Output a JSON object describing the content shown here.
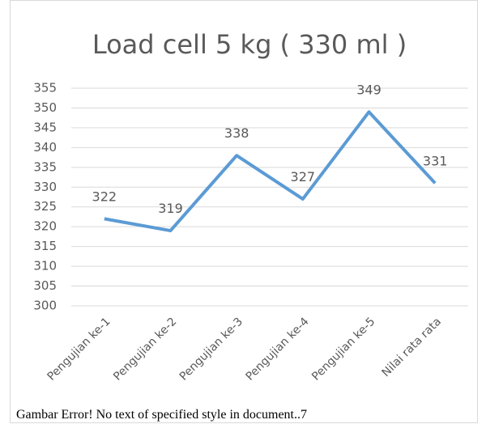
{
  "chart_data": {
    "type": "line",
    "title": "Load cell 5 kg ( 330 ml )",
    "categories": [
      "Pengujian ke-1",
      "Pengujian ke-2",
      "Pengujian ke-3",
      "Pengujian ke-4",
      "Pengujian ke-5",
      "Nilai rata rata"
    ],
    "values": [
      322,
      319,
      338,
      327,
      349,
      331
    ],
    "color": "#5b9bd5",
    "ylim": [
      300,
      355
    ],
    "yticks": [
      300,
      305,
      310,
      315,
      320,
      325,
      330,
      335,
      340,
      345,
      350,
      355
    ],
    "grid": true
  },
  "caption": "Gambar Error! No text of specified style in document..7"
}
